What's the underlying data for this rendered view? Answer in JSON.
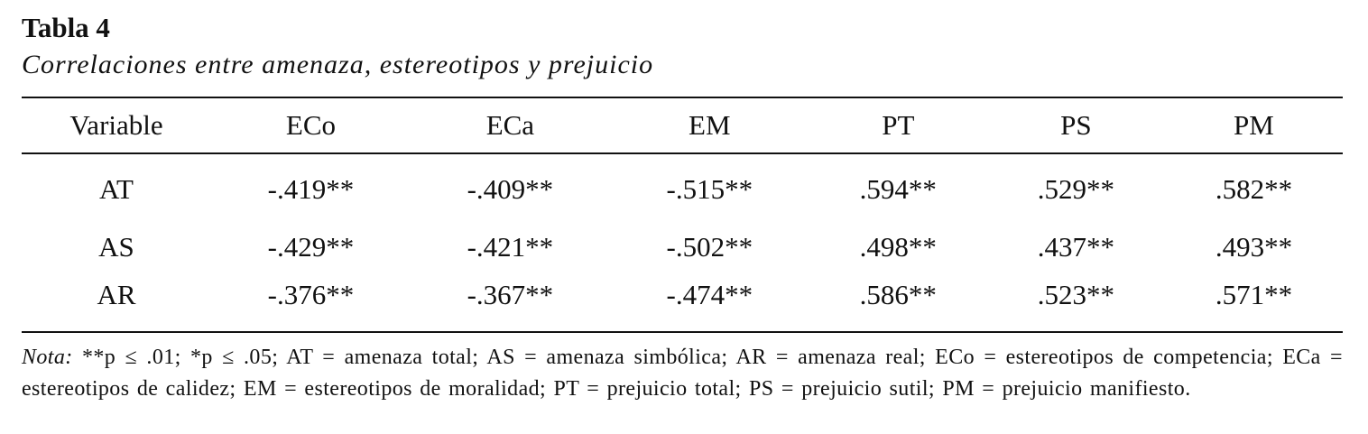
{
  "table": {
    "label": "Tabla 4",
    "caption": "Correlaciones entre amenaza, estereotipos y prejuicio",
    "headers": [
      "Variable",
      "ECo",
      "ECa",
      "EM",
      "PT",
      "PS",
      "PM"
    ],
    "rows": [
      {
        "variable": "AT",
        "values": [
          "-.419**",
          "-.409**",
          "-.515**",
          ".594**",
          ".529**",
          ".582**"
        ]
      },
      {
        "variable": "AS",
        "values": [
          "-.429**",
          "-.421**",
          "-.502**",
          ".498**",
          ".437**",
          ".493**"
        ]
      },
      {
        "variable": "AR",
        "values": [
          "-.376**",
          "-.367**",
          "-.474**",
          ".586**",
          ".523**",
          ".571**"
        ]
      }
    ],
    "note": {
      "label": "Nota:",
      "text": " **p ≤ .01; *p ≤ .05; AT = amenaza total; AS = amenaza simbólica; AR = amenaza real; ECo = estereotipos de competencia; ECa = estereotipos de calidez; EM = estereotipos de moralidad; PT = prejuicio total; PS = prejuicio sutil; PM = prejuicio manifiesto."
    }
  }
}
